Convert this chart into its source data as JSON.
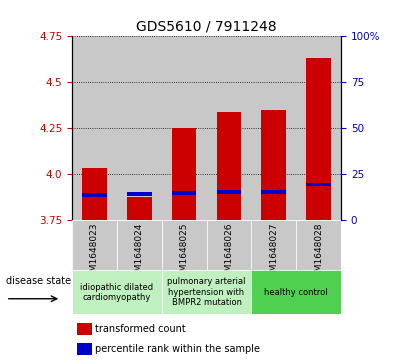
{
  "title": "GDS5610 / 7911248",
  "samples": [
    "GSM1648023",
    "GSM1648024",
    "GSM1648025",
    "GSM1648026",
    "GSM1648027",
    "GSM1648028"
  ],
  "transformed_count": [
    4.03,
    3.875,
    4.25,
    4.335,
    4.35,
    4.63
  ],
  "percentile_rank": [
    13.5,
    14.0,
    14.5,
    15.0,
    15.0,
    19.0
  ],
  "ylim_left": [
    3.75,
    4.75
  ],
  "ylim_right": [
    0,
    100
  ],
  "yticks_left": [
    3.75,
    4.0,
    4.25,
    4.5,
    4.75
  ],
  "yticks_right": [
    0,
    25,
    50,
    75,
    100
  ],
  "bar_bottom": 3.75,
  "bar_color": "#cc0000",
  "percentile_color": "#0000cc",
  "col_bg_color": "#c8c8c8",
  "disease_groups": [
    {
      "label": "idiopathic dilated\ncardiomyopathy",
      "cols": [
        0,
        1
      ],
      "color": "#c0f0c0"
    },
    {
      "label": "pulmonary arterial\nhypertension with\nBMPR2 mutation",
      "cols": [
        2,
        3
      ],
      "color": "#c0f0c0"
    },
    {
      "label": "healthy control",
      "cols": [
        4,
        5
      ],
      "color": "#50d050"
    }
  ],
  "legend_red": "transformed count",
  "legend_blue": "percentile rank within the sample",
  "disease_state_label": "disease state",
  "bar_width": 0.55,
  "title_fontsize": 10,
  "tick_fontsize": 7.5,
  "sample_fontsize": 6.5
}
